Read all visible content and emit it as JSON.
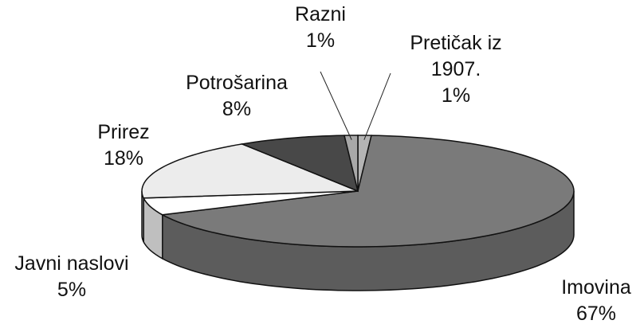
{
  "chart_data": {
    "type": "pie",
    "categories": [
      "Pretičak iz 1907.",
      "Imovina",
      "Javni naslovi",
      "Prirez",
      "Potrošarina",
      "Razni"
    ],
    "values": [
      1,
      67,
      5,
      18,
      8,
      1
    ],
    "value_labels": [
      "1%",
      "67%",
      "5%",
      "18%",
      "8%",
      "1%"
    ],
    "colors": [
      "#b4b4b4",
      "#7a7a7a",
      "#ffffff",
      "#ececec",
      "#484848",
      "#a8a8a8"
    ]
  }
}
